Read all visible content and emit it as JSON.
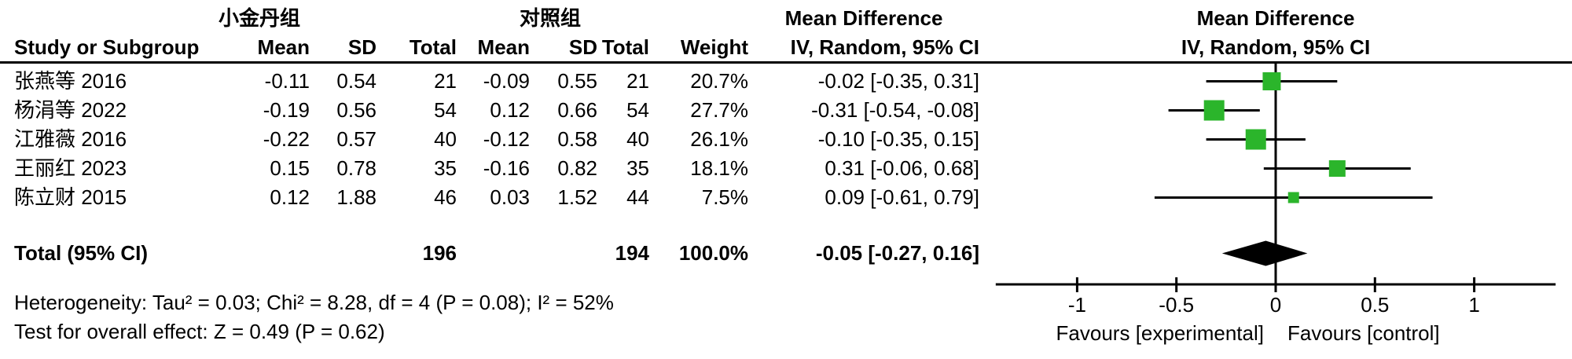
{
  "colors": {
    "marker_green": "#2bb52b",
    "line_black": "#000000"
  },
  "table": {
    "group1_header": "小金丹组",
    "group2_header": "对照组",
    "md_header_line1": "Mean Difference",
    "md_header_line2": "IV, Random, 95% CI",
    "plot_header_line1": "Mean Difference",
    "plot_header_line2": "IV, Random, 95% CI",
    "col_headers": {
      "study": "Study or Subgroup",
      "mean": "Mean",
      "sd": "SD",
      "total": "Total",
      "weight": "Weight"
    },
    "rows": [
      {
        "study": "张燕等 2016",
        "mean1": "-0.11",
        "sd1": "0.54",
        "total1": "21",
        "mean2": "-0.09",
        "sd2": "0.55",
        "total2": "21",
        "weight": "20.7%",
        "ci_text": "-0.02 [-0.35, 0.31]"
      },
      {
        "study": "杨涓等 2022",
        "mean1": "-0.19",
        "sd1": "0.56",
        "total1": "54",
        "mean2": "0.12",
        "sd2": "0.66",
        "total2": "54",
        "weight": "27.7%",
        "ci_text": "-0.31 [-0.54, -0.08]"
      },
      {
        "study": "江雅薇 2016",
        "mean1": "-0.22",
        "sd1": "0.57",
        "total1": "40",
        "mean2": "-0.12",
        "sd2": "0.58",
        "total2": "40",
        "weight": "26.1%",
        "ci_text": "-0.10 [-0.35, 0.15]"
      },
      {
        "study": "王丽红 2023",
        "mean1": "0.15",
        "sd1": "0.78",
        "total1": "35",
        "mean2": "-0.16",
        "sd2": "0.82",
        "total2": "35",
        "weight": "18.1%",
        "ci_text": "0.31 [-0.06, 0.68]"
      },
      {
        "study": "陈立财 2015",
        "mean1": "0.12",
        "sd1": "1.88",
        "total1": "46",
        "mean2": "0.03",
        "sd2": "1.52",
        "total2": "44",
        "weight": "7.5%",
        "ci_text": "0.09 [-0.61, 0.79]"
      }
    ],
    "total_row": {
      "label": "Total (95% CI)",
      "total1": "196",
      "total2": "194",
      "weight": "100.0%",
      "ci_text": "-0.05 [-0.27, 0.16]"
    },
    "heterogeneity": "Heterogeneity: Tau² = 0.03; Chi² = 8.28, df = 4 (P = 0.08); I² = 52%",
    "overall_effect": "Test for overall effect: Z = 0.49 (P = 0.62)"
  },
  "chart_data": {
    "type": "forest",
    "effect_measure": "Mean Difference",
    "model": "IV, Random, 95% CI",
    "studies": [
      {
        "name": "张燕等 2016",
        "md": -0.02,
        "ci_low": -0.35,
        "ci_high": 0.31,
        "weight_pct": 20.7
      },
      {
        "name": "杨涓等 2022",
        "md": -0.31,
        "ci_low": -0.54,
        "ci_high": -0.08,
        "weight_pct": 27.7
      },
      {
        "name": "江雅薇 2016",
        "md": -0.1,
        "ci_low": -0.35,
        "ci_high": 0.15,
        "weight_pct": 26.1
      },
      {
        "name": "王丽红 2023",
        "md": 0.31,
        "ci_low": -0.06,
        "ci_high": 0.68,
        "weight_pct": 18.1
      },
      {
        "name": "陈立财 2015",
        "md": 0.09,
        "ci_low": -0.61,
        "ci_high": 0.79,
        "weight_pct": 7.5
      }
    ],
    "total": {
      "md": -0.05,
      "ci_low": -0.27,
      "ci_high": 0.16
    },
    "axis": {
      "ticks": [
        "-1",
        "-0.5",
        "0",
        "0.5",
        "1"
      ],
      "tick_values": [
        -1,
        -0.5,
        0,
        0.5,
        1
      ],
      "min": -1.41,
      "max": 1.41,
      "label_left": "Favours [experimental]",
      "label_right": "Favours [control]"
    }
  }
}
